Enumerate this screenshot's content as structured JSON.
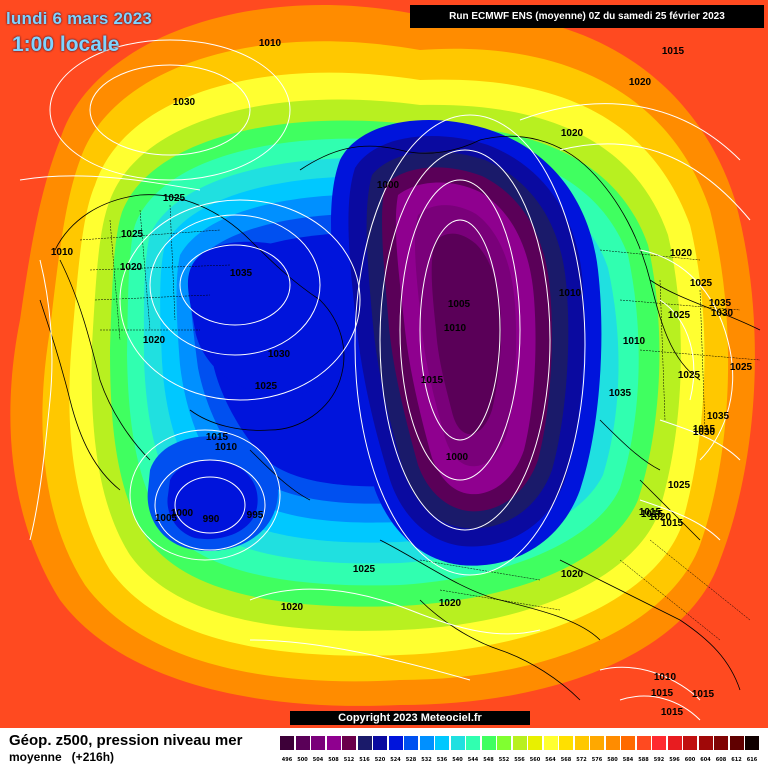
{
  "header": {
    "date_line": "lundi 6 mars 2023",
    "hour_line": "1:00 locale",
    "run_info": "Run ECMWF ENS (moyenne) 0Z du samedi 25 février 2023"
  },
  "footer": {
    "product_title": "Géop. z500, pression niveau mer",
    "product_subtitle": "moyenne   (+216h)",
    "copyright": "Copyright 2023 Meteociel.fr"
  },
  "legend": {
    "values": [
      "496",
      "500",
      "504",
      "508",
      "512",
      "516",
      "520",
      "524",
      "528",
      "532",
      "536",
      "540",
      "544",
      "548",
      "552",
      "556",
      "560",
      "564",
      "568",
      "572",
      "576",
      "580",
      "584",
      "588",
      "592",
      "596",
      "600",
      "604",
      "608",
      "612",
      "616"
    ],
    "colors": [
      "#3d0038",
      "#5a0058",
      "#7a007a",
      "#8f008f",
      "#6a004a",
      "#1a1a6a",
      "#0a0aa0",
      "#0014dc",
      "#0050f0",
      "#0090ff",
      "#00c8ff",
      "#20e0e0",
      "#30ffb0",
      "#40ff60",
      "#80ff30",
      "#b8f020",
      "#e8f000",
      "#ffff30",
      "#ffe000",
      "#ffc800",
      "#ffa800",
      "#ff8c00",
      "#ff6a00",
      "#ff4a20",
      "#ff2a30",
      "#e81c20",
      "#c01010",
      "#a00808",
      "#800404",
      "#600000",
      "#100000"
    ]
  },
  "pressure_labels": [
    {
      "text": "1010"
    },
    {
      "text": "1030"
    },
    {
      "text": "1025"
    },
    {
      "text": "1025"
    },
    {
      "text": "1020"
    },
    {
      "text": "1010"
    },
    {
      "text": "1035"
    },
    {
      "text": "1020"
    },
    {
      "text": "1030"
    },
    {
      "text": "1025"
    },
    {
      "text": "1015"
    },
    {
      "text": "1010"
    },
    {
      "text": "1005"
    },
    {
      "text": "1000"
    },
    {
      "text": "990"
    },
    {
      "text": "995"
    },
    {
      "text": "1000"
    },
    {
      "text": "1005"
    },
    {
      "text": "1010"
    },
    {
      "text": "1015"
    },
    {
      "text": "1000"
    },
    {
      "text": "1010"
    },
    {
      "text": "1010"
    },
    {
      "text": "1020"
    },
    {
      "text": "1015"
    },
    {
      "text": "1020"
    },
    {
      "text": "1020"
    },
    {
      "text": "1025"
    },
    {
      "text": "1035"
    },
    {
      "text": "1030"
    },
    {
      "text": "1025"
    },
    {
      "text": "1025"
    },
    {
      "text": "1025"
    },
    {
      "text": "1015"
    },
    {
      "text": "1035"
    },
    {
      "text": "1030"
    },
    {
      "text": "1025"
    },
    {
      "text": "1015"
    },
    {
      "text": "1015"
    },
    {
      "text": "1025"
    },
    {
      "text": "1020"
    },
    {
      "text": "1020"
    },
    {
      "text": "1020"
    },
    {
      "text": "1010"
    },
    {
      "text": "1015"
    },
    {
      "text": "1015"
    },
    {
      "text": "1015"
    },
    {
      "text": "1035"
    },
    {
      "text": "1020"
    },
    {
      "text": "1015"
    }
  ]
}
